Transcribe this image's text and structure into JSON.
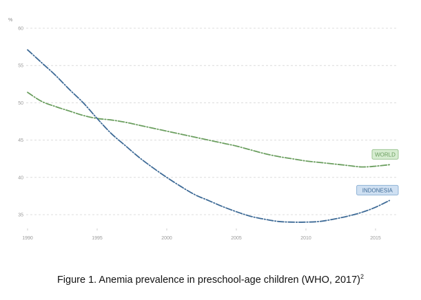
{
  "chart_data": {
    "type": "line",
    "title": "",
    "unit_label": "%",
    "xlabel": "",
    "ylabel": "%",
    "xlim": [
      1990,
      2016
    ],
    "ylim": [
      33,
      60
    ],
    "x_ticks": [
      "1990",
      "1995",
      "2000",
      "2005",
      "2010",
      "2015"
    ],
    "y_ticks": [
      "60",
      "55",
      "50",
      "45",
      "40",
      "35"
    ],
    "grid": "horizontal dashed",
    "series": [
      {
        "name": "WORLD",
        "color": "#6a9e5e",
        "label_fill": "#d6ecd0",
        "label_stroke": "#9cc492",
        "x": [
          1990,
          1991,
          1992,
          1993,
          1994,
          1995,
          1996,
          1997,
          1998,
          1999,
          2000,
          2001,
          2002,
          2003,
          2004,
          2005,
          2006,
          2007,
          2008,
          2009,
          2010,
          2011,
          2012,
          2013,
          2014,
          2015,
          2016
        ],
        "y": [
          51.4,
          50.2,
          49.5,
          48.9,
          48.3,
          47.9,
          47.7,
          47.4,
          47.0,
          46.6,
          46.2,
          45.8,
          45.4,
          45.0,
          44.6,
          44.2,
          43.7,
          43.2,
          42.8,
          42.5,
          42.2,
          42.0,
          41.8,
          41.6,
          41.4,
          41.5,
          41.7
        ]
      },
      {
        "name": "INDONESIA",
        "color": "#3d6a96",
        "label_fill": "#cfe0f2",
        "label_stroke": "#8fb2d6",
        "x": [
          1990,
          1991,
          1992,
          1993,
          1994,
          1995,
          1996,
          1997,
          1998,
          1999,
          2000,
          2001,
          2002,
          2003,
          2004,
          2005,
          2006,
          2007,
          2008,
          2009,
          2010,
          2011,
          2012,
          2013,
          2014,
          2015,
          2016
        ],
        "y": [
          57.1,
          55.4,
          53.7,
          51.8,
          50.0,
          47.9,
          45.9,
          44.3,
          42.7,
          41.3,
          40.0,
          38.8,
          37.7,
          36.9,
          36.1,
          35.4,
          34.8,
          34.4,
          34.1,
          34.0,
          34.0,
          34.1,
          34.4,
          34.8,
          35.3,
          36.0,
          36.9
        ]
      }
    ]
  },
  "caption": {
    "text": "Figure 1. Anemia prevalence in preschool-age children (WHO, 2017)",
    "superscript": "2"
  }
}
